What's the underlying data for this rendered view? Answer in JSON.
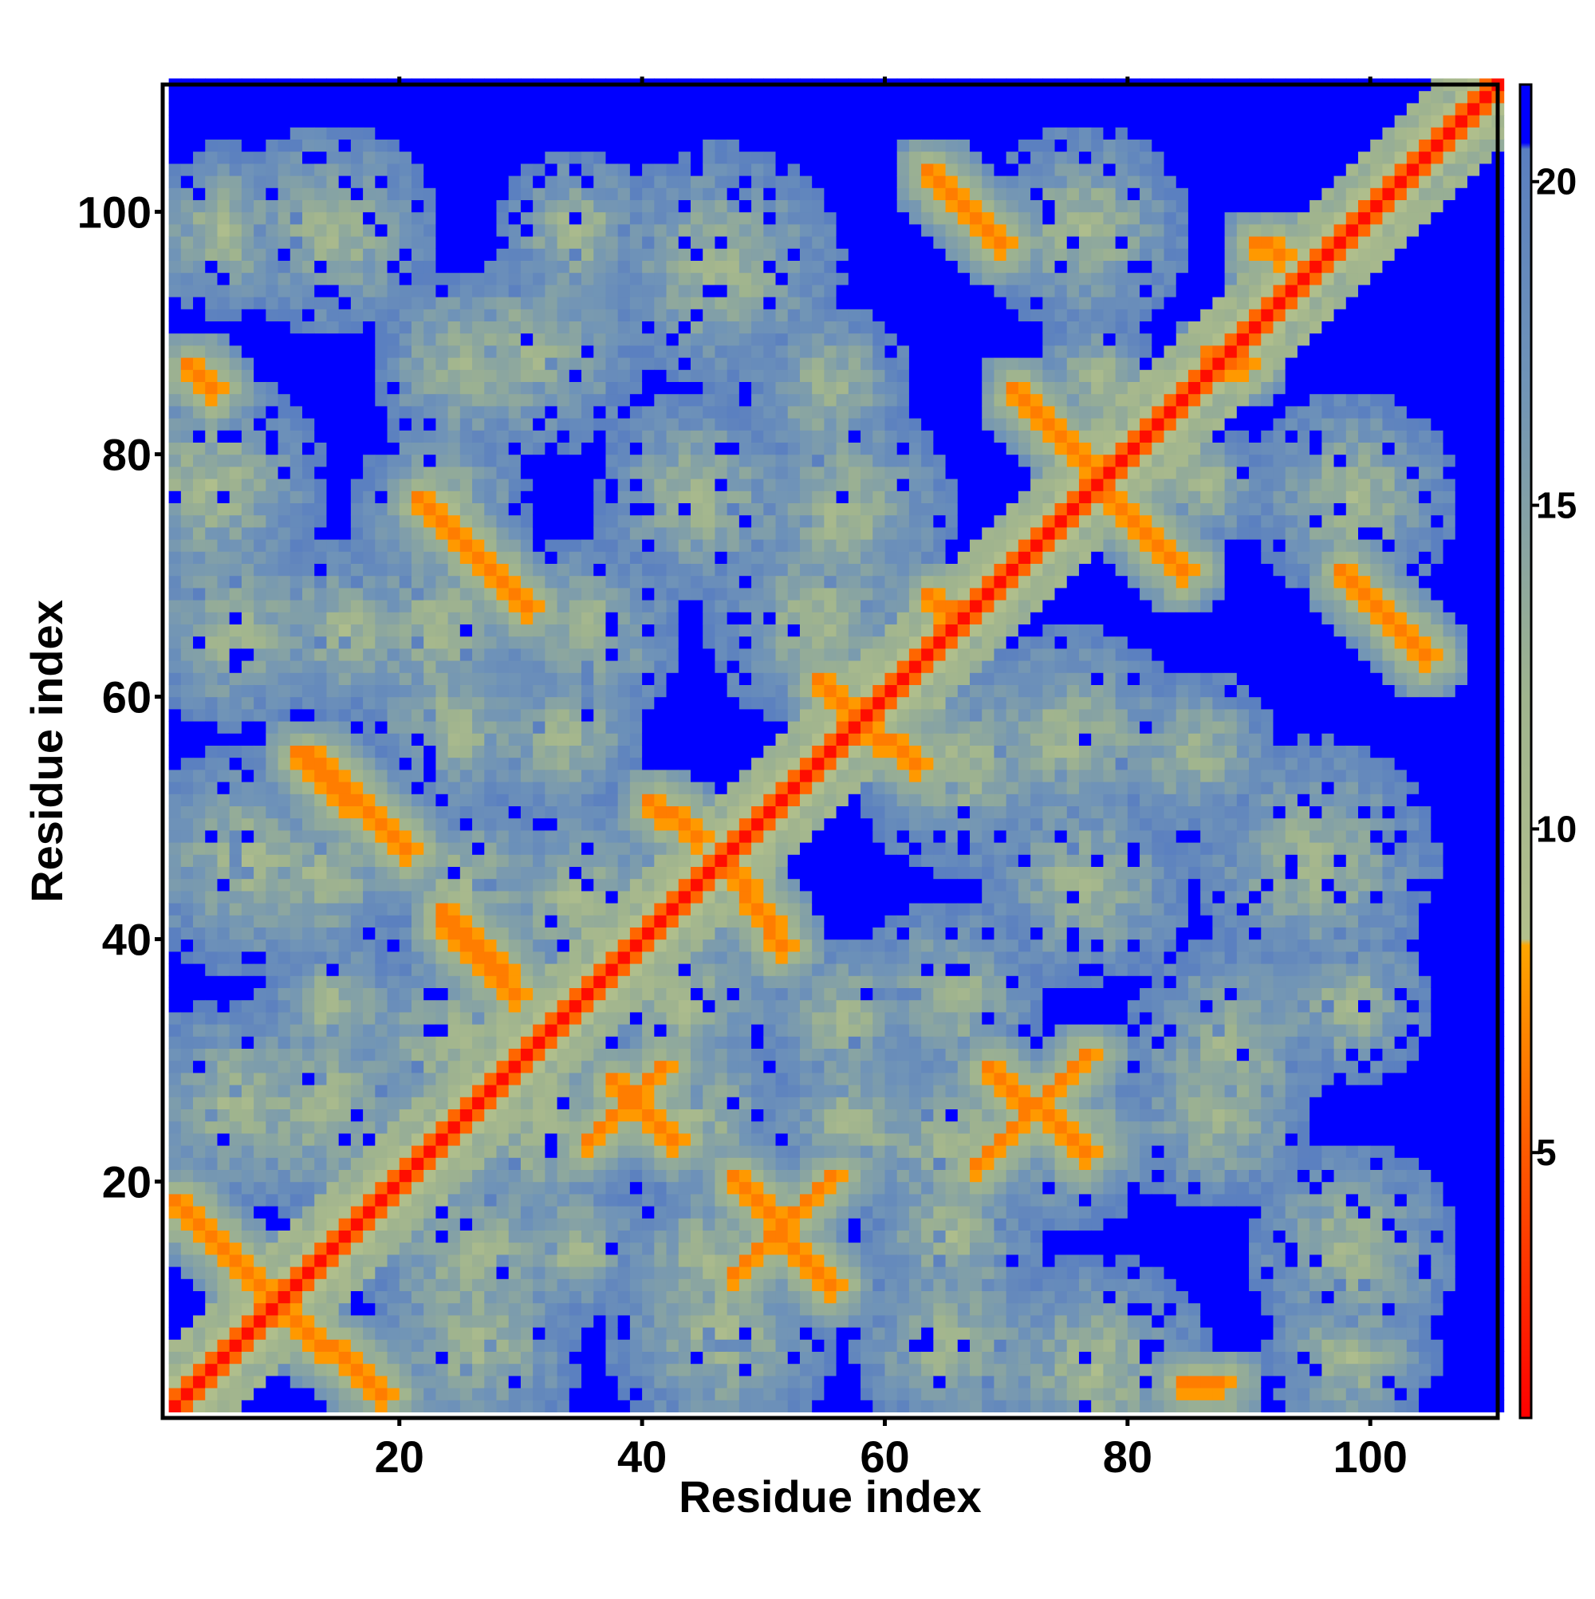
{
  "chart_data": {
    "type": "heatmap",
    "title": "",
    "xlabel": "Residue index",
    "ylabel": "Residue index",
    "xlim": [
      1,
      110
    ],
    "ylim": [
      1,
      110
    ],
    "x_ticks": [
      20,
      40,
      60,
      80,
      100
    ],
    "y_ticks": [
      20,
      40,
      60,
      80,
      100
    ],
    "n_residues": 110,
    "colorbar": {
      "range": [
        0.9,
        21.5
      ],
      "ticks": [
        5,
        10,
        15,
        20
      ],
      "stops": [
        {
          "value": 0.9,
          "color": "#ff0000"
        },
        {
          "value": 5,
          "color": "#ff5a00"
        },
        {
          "value": 8.2,
          "color": "#ffa500"
        },
        {
          "value": 8.3,
          "color": "#b3c08c"
        },
        {
          "value": 12,
          "color": "#a0b48e"
        },
        {
          "value": 17,
          "color": "#6f93b8"
        },
        {
          "value": 20.5,
          "color": "#5a7fc0"
        },
        {
          "value": 20.6,
          "color": "#0000ff"
        },
        {
          "value": 21.5,
          "color": "#0000ff"
        }
      ]
    },
    "diagonal_value": 1.5,
    "near_diagonal_band": {
      "width_residues": 3,
      "value": 10
    },
    "off_diagonal_contacts": [
      {
        "from": [
          1,
          18
        ],
        "to": [
          9,
          10
        ],
        "value": 6.5
      },
      {
        "from": [
          10,
          9
        ],
        "to": [
          18,
          2
        ],
        "value": 6.5
      },
      {
        "from": [
          12,
          55
        ],
        "to": [
          20,
          47
        ],
        "value": 6.5
      },
      {
        "from": [
          47,
          12
        ],
        "to": [
          55,
          20
        ],
        "value": 6.5
      },
      {
        "from": [
          21,
          76
        ],
        "to": [
          30,
          67
        ],
        "value": 6.5
      },
      {
        "from": [
          67,
          21
        ],
        "to": [
          76,
          30
        ],
        "value": 6.5
      },
      {
        "from": [
          23,
          41
        ],
        "to": [
          29,
          35
        ],
        "value": 6.5
      },
      {
        "from": [
          35,
          23
        ],
        "to": [
          41,
          29
        ],
        "value": 6.5
      },
      {
        "from": [
          37,
          28
        ],
        "to": [
          42,
          23
        ],
        "value": 6.5
      },
      {
        "from": [
          28,
          37
        ],
        "to": [
          23,
          42
        ],
        "value": 6.5
      },
      {
        "from": [
          47,
          20
        ],
        "to": [
          55,
          11
        ],
        "value": 6.5
      },
      {
        "from": [
          20,
          47
        ],
        "to": [
          11,
          55
        ],
        "value": 6.5
      },
      {
        "from": [
          40,
          51
        ],
        "to": [
          44,
          48
        ],
        "value": 6.5
      },
      {
        "from": [
          47,
          45
        ],
        "to": [
          51,
          39
        ],
        "value": 6.5
      },
      {
        "from": [
          54,
          61
        ],
        "to": [
          57,
          58
        ],
        "value": 6.5
      },
      {
        "from": [
          58,
          57
        ],
        "to": [
          62,
          54
        ],
        "value": 6.5
      },
      {
        "from": [
          63,
          103
        ],
        "to": [
          69,
          97
        ],
        "value": 6.5
      },
      {
        "from": [
          68,
          29
        ],
        "to": [
          76,
          22
        ],
        "value": 6.5
      },
      {
        "from": [
          70,
          85
        ],
        "to": [
          77,
          78
        ],
        "value": 6.5
      },
      {
        "from": [
          78,
          76
        ],
        "to": [
          84,
          70
        ],
        "value": 6.5
      },
      {
        "from": [
          97,
          70
        ],
        "to": [
          104,
          63
        ],
        "value": 6.5
      },
      {
        "from": [
          84,
          3
        ],
        "to": [
          87,
          3
        ],
        "value": 6.5
      },
      {
        "from": [
          2,
          87
        ],
        "to": [
          4,
          85
        ],
        "value": 6.5
      },
      {
        "from": [
          63,
          68
        ],
        "to": [
          66,
          66
        ],
        "value": 6.5
      },
      {
        "from": [
          86,
          88
        ],
        "to": [
          89,
          87
        ],
        "value": 6.5
      },
      {
        "from": [
          90,
          97
        ],
        "to": [
          92,
          96
        ],
        "value": 6.5
      }
    ]
  },
  "colors": {
    "frame": "#000000",
    "background": "#ffffff"
  }
}
